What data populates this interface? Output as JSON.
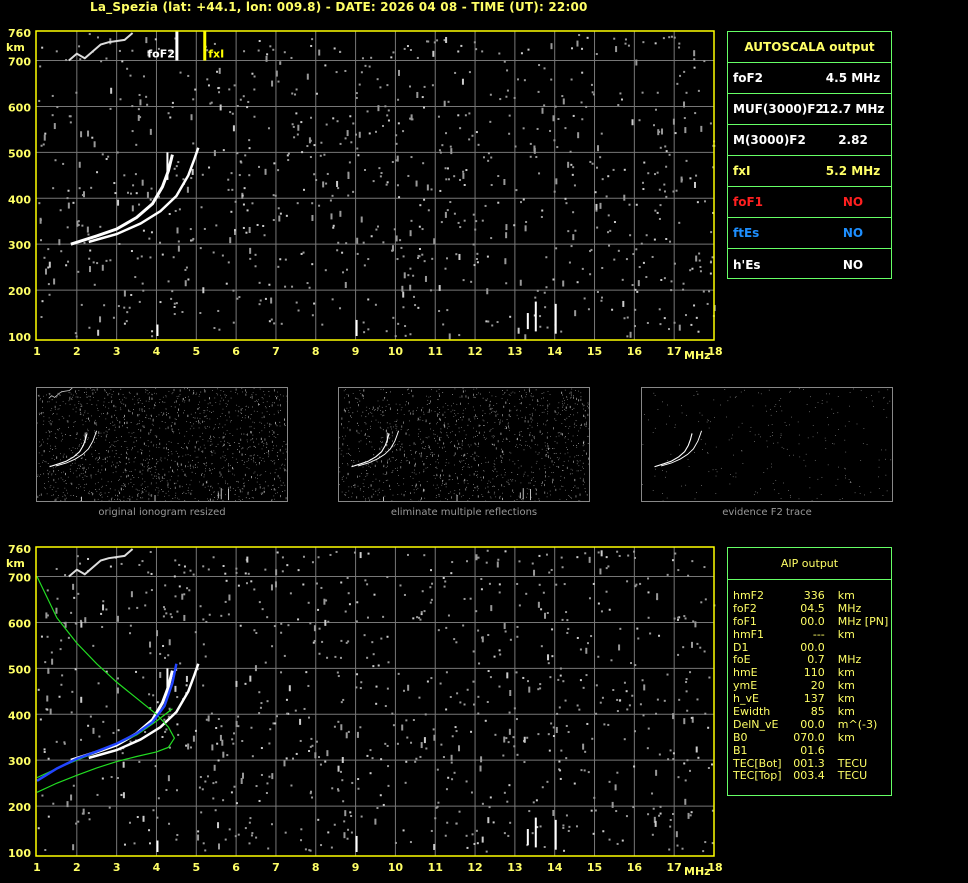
{
  "title": "La_Spezia (lat: +44.1, lon: 009.8) - DATE: 2026 04 08 - TIME (UT): 22:00",
  "autoscala": {
    "header": "AUTOSCALA output",
    "rows": [
      {
        "label": "foF2",
        "value": "4.5 MHz",
        "color": "#ffffff"
      },
      {
        "label": "MUF(3000)F2",
        "value": "12.7 MHz",
        "color": "#ffffff"
      },
      {
        "label": "M(3000)F2",
        "value": "2.82",
        "color": "#ffffff"
      },
      {
        "label": "fxI",
        "value": "5.2 MHz",
        "color": "#ffff66"
      },
      {
        "label": "foF1",
        "value": "NO",
        "color": "#ff2020"
      },
      {
        "label": "ftEs",
        "value": "NO",
        "color": "#1e8fff"
      },
      {
        "label": "h'Es",
        "value": "NO",
        "color": "#ffffff"
      }
    ]
  },
  "aip": {
    "header": "AIP output",
    "rows": [
      [
        "hmF2",
        "336",
        "km"
      ],
      [
        "foF2",
        "04.5",
        "MHz"
      ],
      [
        "foF1",
        "00.0",
        "MHz    [PN]"
      ],
      [
        "hmF1",
        "---",
        "km"
      ],
      [
        "D1",
        "00.0",
        ""
      ],
      [
        "foE",
        "0.7",
        "MHz"
      ],
      [
        "hmE",
        "110",
        "km"
      ],
      [
        "ymE",
        "20",
        "km"
      ],
      [
        "h_vE",
        "137",
        "km"
      ],
      [
        "Ewidth",
        "85",
        "km"
      ],
      [
        "DelN_vE",
        "00.0",
        "m^(-3)"
      ],
      [
        "B0",
        "070.0",
        "km"
      ],
      [
        "B1",
        "01.6",
        ""
      ],
      [
        "TEC[Bot]",
        "001.3",
        "TECU"
      ],
      [
        "TEC[Top]",
        "003.4",
        "TECU"
      ]
    ]
  },
  "thumbnails": [
    "original ionogram resized",
    "eliminate multiple reflections",
    "evidence F2 trace"
  ],
  "chart_data": {
    "type": "scatter",
    "xlabel": "MHz",
    "ylabel": "km",
    "xlim": [
      1,
      18
    ],
    "ylim": [
      100,
      760
    ],
    "x_ticks": [
      "1",
      "2",
      "3",
      "4",
      "5",
      "6",
      "7",
      "8",
      "9",
      "10",
      "11",
      "12",
      "13",
      "14",
      "15",
      "16",
      "17",
      "18"
    ],
    "y_ticks": [
      "760",
      "700",
      "600",
      "500",
      "400",
      "300",
      "200",
      "100"
    ],
    "grid": true,
    "colors": {
      "frame": "#ffff00",
      "grid": "#777777",
      "echo": "#ffffff",
      "noise": "#999999",
      "model": "#22dd22",
      "fitted": "#2244ff"
    },
    "markers": [
      {
        "label": "foF2",
        "x": 4.5,
        "color": "#ffffff"
      },
      {
        "label": "fxI",
        "x": 5.2,
        "color": "#ffff00"
      }
    ],
    "traces": {
      "ordinary": [
        [
          1.85,
          300
        ],
        [
          2.5,
          318
        ],
        [
          3.0,
          333
        ],
        [
          3.5,
          358
        ],
        [
          3.9,
          388
        ],
        [
          4.15,
          425
        ],
        [
          4.3,
          460
        ],
        [
          4.4,
          495
        ]
      ],
      "extraordinary": [
        [
          2.3,
          305
        ],
        [
          3.0,
          322
        ],
        [
          3.6,
          345
        ],
        [
          4.1,
          372
        ],
        [
          4.5,
          405
        ],
        [
          4.8,
          450
        ],
        [
          4.95,
          485
        ],
        [
          5.05,
          510
        ]
      ],
      "top_multiple": [
        [
          1.8,
          700
        ],
        [
          2.0,
          715
        ],
        [
          2.2,
          705
        ],
        [
          2.4,
          720
        ],
        [
          2.6,
          735
        ],
        [
          2.8,
          740
        ],
        [
          3.2,
          745
        ],
        [
          3.4,
          760
        ]
      ]
    },
    "aip_model": {
      "green_a": [
        [
          1,
          700
        ],
        [
          1.5,
          610
        ],
        [
          2,
          555
        ],
        [
          2.5,
          510
        ],
        [
          3,
          470
        ],
        [
          3.5,
          435
        ],
        [
          4,
          400
        ],
        [
          4.3,
          372
        ],
        [
          4.45,
          348
        ],
        [
          4.3,
          328
        ],
        [
          4,
          318
        ],
        [
          3.5,
          308
        ],
        [
          3,
          297
        ],
        [
          2.5,
          283
        ],
        [
          2,
          267
        ],
        [
          1.5,
          250
        ],
        [
          1,
          230
        ]
      ],
      "green_b": [
        [
          1,
          262
        ],
        [
          1.5,
          282
        ],
        [
          2,
          300
        ],
        [
          2.5,
          318
        ],
        [
          3,
          335
        ],
        [
          3.5,
          355
        ],
        [
          4,
          385
        ],
        [
          4.4,
          412
        ]
      ],
      "blue": [
        [
          1,
          255
        ],
        [
          1.5,
          282
        ],
        [
          2,
          303
        ],
        [
          2.5,
          319
        ],
        [
          3,
          336
        ],
        [
          3.5,
          358
        ],
        [
          3.9,
          383
        ],
        [
          4.2,
          418
        ],
        [
          4.4,
          468
        ],
        [
          4.5,
          510
        ]
      ]
    }
  }
}
